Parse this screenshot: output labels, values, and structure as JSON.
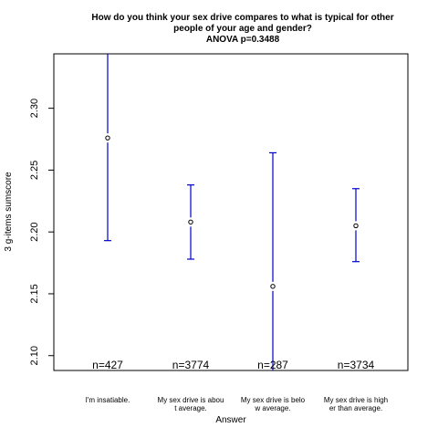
{
  "chart_data": {
    "type": "errorbar",
    "title_lines": [
      "How do you think your sex drive compares to what is typical for other",
      "people of your age and gender?",
      "ANOVA p=0.3488"
    ],
    "xlabel": "Answer",
    "ylabel": "3 g-items sumscore",
    "ylim": [
      2.088,
      2.344
    ],
    "yticks": [
      2.1,
      2.15,
      2.2,
      2.25,
      2.3
    ],
    "ytick_labels": [
      "2.10",
      "2.15",
      "2.20",
      "2.25",
      "2.30"
    ],
    "categories": [
      {
        "lines": [
          "I'm insatiable."
        ],
        "n_label": "n=427",
        "mean": 2.276,
        "lower": 2.193,
        "upper": 2.344,
        "upper_clipped": true,
        "lower_clipped": false
      },
      {
        "lines": [
          "My sex drive is abou",
          "t average."
        ],
        "n_label": "n=3774",
        "mean": 2.208,
        "lower": 2.178,
        "upper": 2.238,
        "upper_clipped": false,
        "lower_clipped": false
      },
      {
        "lines": [
          "My sex drive is belo",
          "w average."
        ],
        "n_label": "n=287",
        "mean": 2.156,
        "lower": 2.088,
        "upper": 2.264,
        "upper_clipped": false,
        "lower_clipped": true
      },
      {
        "lines": [
          "My sex drive is high",
          "er than average."
        ],
        "n_label": "n=3734",
        "mean": 2.205,
        "lower": 2.176,
        "upper": 2.235,
        "upper_clipped": false,
        "lower_clipped": false
      }
    ],
    "grid": false,
    "colors": {
      "errorbar": "#0000cc",
      "point": "#000000",
      "frame": "#000000"
    }
  }
}
